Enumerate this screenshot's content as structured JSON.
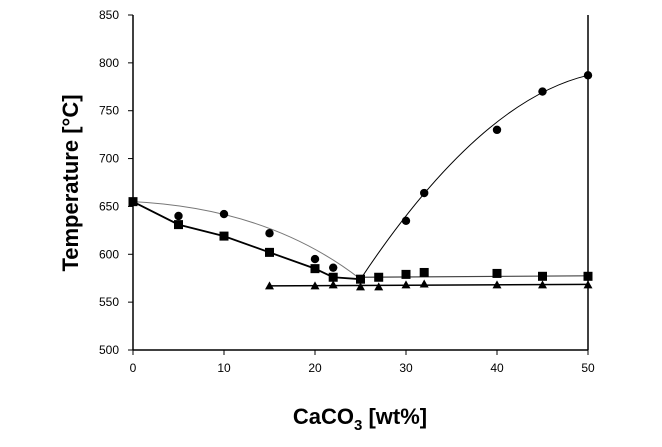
{
  "chart_data": {
    "type": "scatter",
    "title": "",
    "xlabel": "CaCO₃ [wt%]",
    "ylabel": "Temperature [°C]",
    "xlim": [
      0,
      50
    ],
    "ylim": [
      500,
      850
    ],
    "xticks": [
      0,
      10,
      20,
      30,
      40,
      50
    ],
    "yticks": [
      500,
      550,
      600,
      650,
      700,
      750,
      800,
      850
    ],
    "grid": false,
    "legend": "none",
    "series": [
      {
        "marker": "circle",
        "line": "smooth fit",
        "color": "#000000",
        "x": [
          0,
          5,
          10,
          15,
          20,
          22,
          25,
          30,
          32,
          40,
          45,
          50
        ],
        "y": [
          655,
          640,
          642,
          622,
          595,
          586,
          574,
          635,
          664,
          730,
          770,
          787
        ]
      },
      {
        "marker": "square",
        "line": "segments",
        "color": "#000000",
        "x": [
          0,
          5,
          10,
          15,
          20,
          22,
          25,
          27,
          30,
          32,
          40,
          45,
          50
        ],
        "y": [
          655,
          631,
          619,
          602,
          585,
          576,
          574,
          576,
          579,
          581,
          580,
          577,
          577
        ]
      },
      {
        "marker": "triangle",
        "line": "flat fit",
        "color": "#000000",
        "x": [
          15,
          20,
          22,
          25,
          27,
          30,
          32,
          40,
          45,
          50
        ],
        "y": [
          567,
          567,
          568,
          566,
          566,
          568,
          569,
          568,
          568,
          568
        ]
      }
    ]
  }
}
